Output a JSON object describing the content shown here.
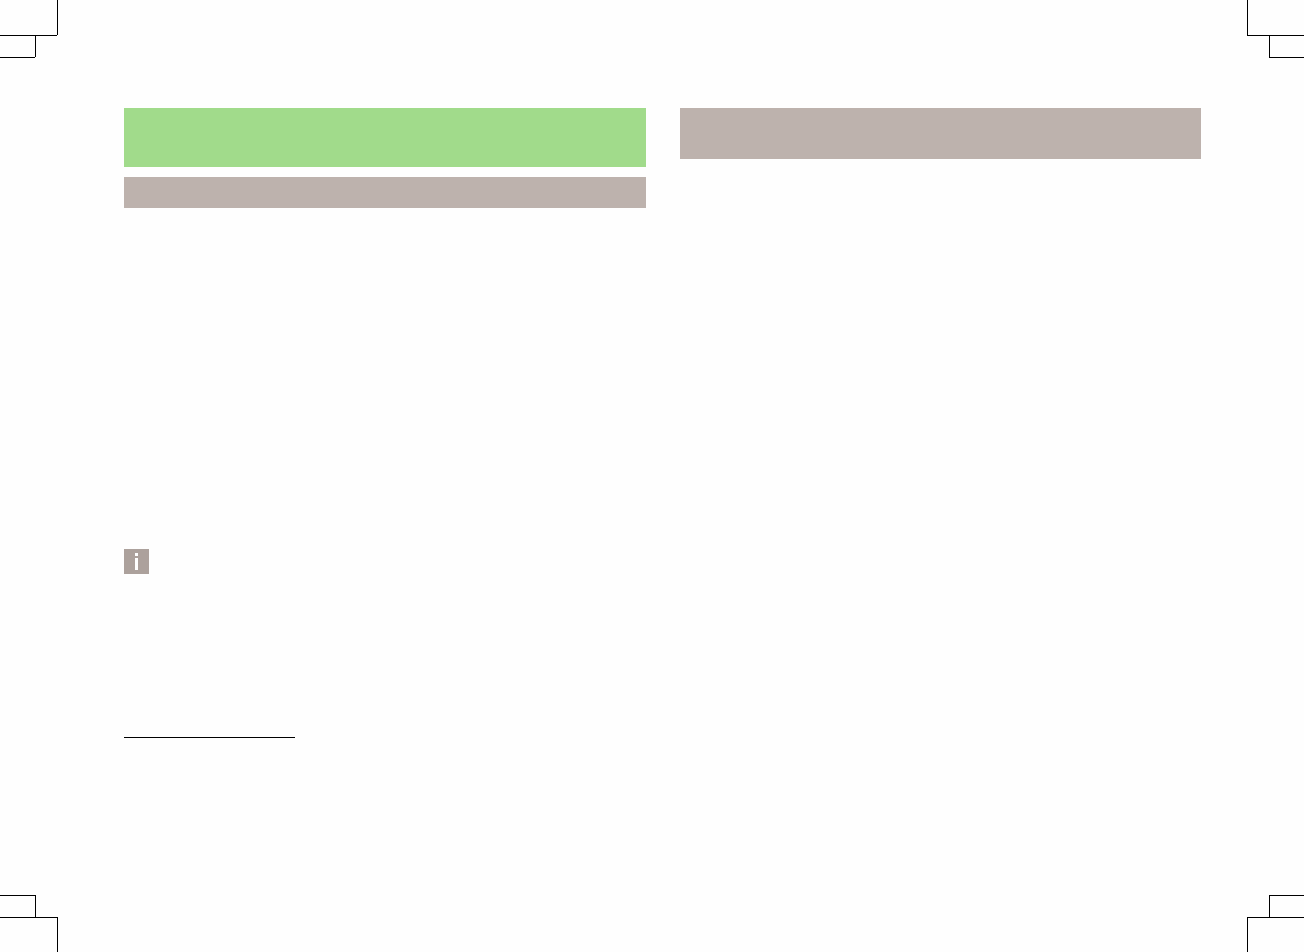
{
  "colors": {
    "chapter_bar": "#a1db8b",
    "section_bar": "#bdb2ad",
    "info_icon_bg": "#aca19c",
    "crop_marks": "#000000"
  },
  "icons": {
    "info": "info-icon"
  }
}
